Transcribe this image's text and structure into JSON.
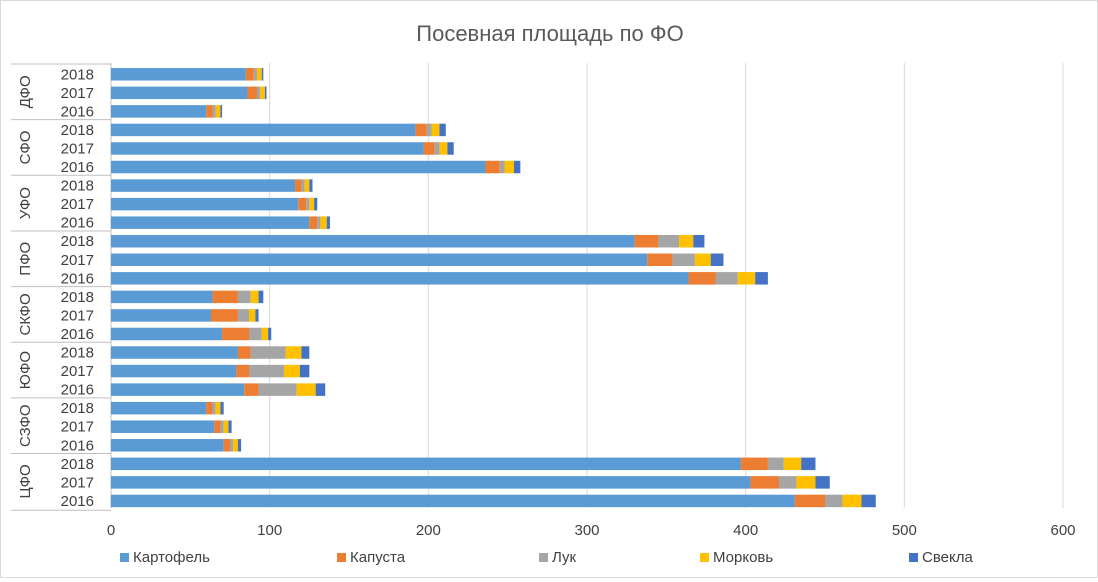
{
  "chart_data": {
    "type": "bar",
    "orientation": "horizontal",
    "stacked": true,
    "title": "Посевная площадь по ФО",
    "xlim": [
      0,
      600
    ],
    "x_ticks": [
      0,
      100,
      200,
      300,
      400,
      500,
      600
    ],
    "grid": true,
    "legend_position": "bottom",
    "groups": [
      {
        "name": "ДФО",
        "years": [
          "2018",
          "2017",
          "2016"
        ]
      },
      {
        "name": "СФО",
        "years": [
          "2018",
          "2017",
          "2016"
        ]
      },
      {
        "name": "УФО",
        "years": [
          "2018",
          "2017",
          "2016"
        ]
      },
      {
        "name": "ПФО",
        "years": [
          "2018",
          "2017",
          "2016"
        ]
      },
      {
        "name": "СКФО",
        "years": [
          "2018",
          "2017",
          "2016"
        ]
      },
      {
        "name": "ЮФО",
        "years": [
          "2018",
          "2017",
          "2016"
        ]
      },
      {
        "name": "СЗФО",
        "years": [
          "2018",
          "2017",
          "2016"
        ]
      },
      {
        "name": "ЦФО",
        "years": [
          "2018",
          "2017",
          "2016"
        ]
      }
    ],
    "series": [
      {
        "name": "Картофель",
        "color": "#5B9BD5",
        "values": [
          85,
          86,
          60,
          192,
          197,
          236,
          116,
          118,
          125,
          330,
          338,
          364,
          64,
          63,
          70,
          80,
          79,
          84,
          60,
          65,
          71,
          397,
          403,
          431
        ]
      },
      {
        "name": "Капуста",
        "color": "#ED7D31",
        "values": [
          5,
          6,
          4,
          7,
          7,
          9,
          4,
          5,
          5,
          15,
          16,
          17,
          16,
          17,
          17,
          8,
          8,
          9,
          4,
          4,
          4,
          17,
          18,
          19
        ]
      },
      {
        "name": "Лук",
        "color": "#A5A5A5",
        "values": [
          2,
          2,
          2,
          3,
          3,
          3,
          2,
          2,
          2,
          13,
          14,
          14,
          8,
          7,
          8,
          22,
          22,
          24,
          2,
          2,
          2,
          10,
          11,
          11
        ]
      },
      {
        "name": "Морковь",
        "color": "#FFC000",
        "values": [
          3,
          3,
          3,
          5,
          5,
          6,
          3,
          3,
          4,
          9,
          10,
          11,
          5,
          4,
          4,
          10,
          10,
          12,
          3,
          3,
          3,
          11,
          12,
          12
        ]
      },
      {
        "name": "Свекла",
        "color": "#4472C4",
        "values": [
          1,
          1,
          1,
          4,
          4,
          4,
          2,
          2,
          2,
          7,
          8,
          8,
          3,
          2,
          2,
          5,
          6,
          6,
          2,
          2,
          2,
          9,
          9,
          9
        ]
      }
    ]
  }
}
